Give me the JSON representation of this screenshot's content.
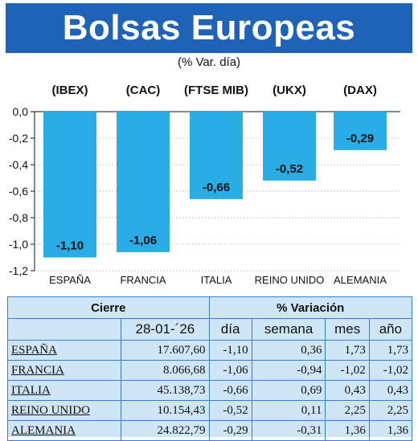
{
  "header": {
    "title": "Bolsas Europeas",
    "subtitle": "(% Var. día)"
  },
  "chart_data": {
    "type": "bar",
    "index_labels": [
      "(IBEX)",
      "(CAC)",
      "(FTSE MIB)",
      "(UKX)",
      "(DAX)"
    ],
    "categories": [
      "ESPAÑA",
      "FRANCIA",
      "ITALIA",
      "REINO UNIDO",
      "ALEMANIA"
    ],
    "values": [
      -1.1,
      -1.06,
      -0.66,
      -0.52,
      -0.29
    ],
    "value_labels": [
      "-1,10",
      "-1,06",
      "-0,66",
      "-0,52",
      "-0,29"
    ],
    "y_ticks": [
      "0,0",
      "-0,2",
      "-0,4",
      "-0,6",
      "-0,8",
      "-1,0",
      "-1,2"
    ],
    "ylim": [
      -1.2,
      0
    ],
    "bar_color": "#2aade6"
  },
  "table": {
    "group_headers": [
      "Cierre",
      "% Variación"
    ],
    "sub_headers": [
      "28-01-´26",
      "día",
      "semana",
      "mes",
      "año"
    ],
    "rows": [
      [
        "ESPAÑA",
        "17.607,60",
        "-1,10",
        "0,36",
        "1,73",
        "1,73"
      ],
      [
        "FRANCIA",
        "8.066,68",
        "-1,06",
        "-0,94",
        "-1,02",
        "-1,02"
      ],
      [
        "ITALIA",
        "45.138,73",
        "-0,66",
        "0,69",
        "0,43",
        "0,43"
      ],
      [
        "REINO UNIDO",
        "10.154,43",
        "-0,52",
        "0,11",
        "2,25",
        "2,25"
      ],
      [
        "ALEMANIA",
        "24.822,79",
        "-0,29",
        "-0,31",
        "1,36",
        "1,36"
      ]
    ]
  }
}
